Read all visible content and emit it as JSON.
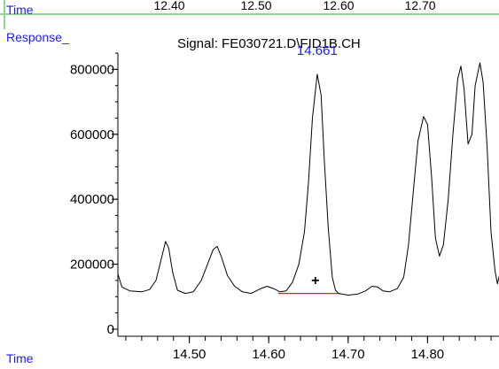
{
  "top_strip": {
    "time_label": "Time",
    "ticks": [
      "12.40",
      "12.50",
      "12.60",
      "12.70"
    ]
  },
  "response_label": "Response_",
  "bottom_time_label": "Time",
  "chart_data": {
    "type": "line",
    "title": "Signal: FE030721.D\\FID1B.CH",
    "xlabel": "Time",
    "ylabel": "Response_",
    "xlim": [
      14.41,
      14.89
    ],
    "ylim": [
      0,
      850000
    ],
    "x_ticks": [
      14.5,
      14.6,
      14.7,
      14.8
    ],
    "x_tick_labels": [
      "14.50",
      "14.60",
      "14.70",
      "14.80"
    ],
    "y_ticks": [
      0,
      200000,
      400000,
      600000,
      800000
    ],
    "y_tick_labels": [
      "0",
      "200000",
      "400000",
      "600000",
      "800000"
    ],
    "grid": false,
    "peak_annotation": {
      "x": 14.661,
      "y": 785000,
      "label": "14.661",
      "color": "#1a1aff"
    },
    "baseline_marker": {
      "x": [
        14.612,
        14.69
      ],
      "y": [
        110000,
        110000
      ],
      "color": "#e02020"
    },
    "cross_marker": {
      "x": 14.661,
      "y": 150000,
      "label": "+"
    },
    "series": [
      {
        "color": "#000000",
        "points": [
          [
            14.41,
            170000
          ],
          [
            14.415,
            130000
          ],
          [
            14.425,
            118000
          ],
          [
            14.44,
            115000
          ],
          [
            14.45,
            122000
          ],
          [
            14.458,
            150000
          ],
          [
            14.464,
            210000
          ],
          [
            14.47,
            270000
          ],
          [
            14.474,
            250000
          ],
          [
            14.479,
            175000
          ],
          [
            14.485,
            120000
          ],
          [
            14.495,
            110000
          ],
          [
            14.505,
            115000
          ],
          [
            14.515,
            150000
          ],
          [
            14.523,
            200000
          ],
          [
            14.53,
            245000
          ],
          [
            14.535,
            255000
          ],
          [
            14.54,
            225000
          ],
          [
            14.548,
            165000
          ],
          [
            14.557,
            132000
          ],
          [
            14.567,
            115000
          ],
          [
            14.578,
            110000
          ],
          [
            14.59,
            125000
          ],
          [
            14.598,
            132000
          ],
          [
            14.606,
            125000
          ],
          [
            14.614,
            115000
          ],
          [
            14.622,
            118000
          ],
          [
            14.63,
            145000
          ],
          [
            14.638,
            200000
          ],
          [
            14.645,
            300000
          ],
          [
            14.65,
            450000
          ],
          [
            14.655,
            650000
          ],
          [
            14.661,
            785000
          ],
          [
            14.666,
            720000
          ],
          [
            14.67,
            520000
          ],
          [
            14.675,
            310000
          ],
          [
            14.68,
            160000
          ],
          [
            14.684,
            120000
          ],
          [
            14.688,
            110000
          ],
          [
            14.7,
            105000
          ],
          [
            14.712,
            108000
          ],
          [
            14.722,
            118000
          ],
          [
            14.73,
            132000
          ],
          [
            14.737,
            130000
          ],
          [
            14.744,
            118000
          ],
          [
            14.752,
            115000
          ],
          [
            14.762,
            125000
          ],
          [
            14.77,
            160000
          ],
          [
            14.776,
            260000
          ],
          [
            14.782,
            420000
          ],
          [
            14.788,
            580000
          ],
          [
            14.795,
            655000
          ],
          [
            14.8,
            630000
          ],
          [
            14.805,
            470000
          ],
          [
            14.81,
            280000
          ],
          [
            14.815,
            225000
          ],
          [
            14.82,
            260000
          ],
          [
            14.826,
            400000
          ],
          [
            14.832,
            600000
          ],
          [
            14.838,
            770000
          ],
          [
            14.842,
            810000
          ],
          [
            14.846,
            740000
          ],
          [
            14.851,
            570000
          ],
          [
            14.856,
            600000
          ],
          [
            14.86,
            750000
          ],
          [
            14.866,
            820000
          ],
          [
            14.87,
            760000
          ],
          [
            14.875,
            560000
          ],
          [
            14.88,
            300000
          ],
          [
            14.885,
            180000
          ],
          [
            14.888,
            140000
          ],
          [
            14.891,
            170000
          ]
        ]
      }
    ]
  }
}
